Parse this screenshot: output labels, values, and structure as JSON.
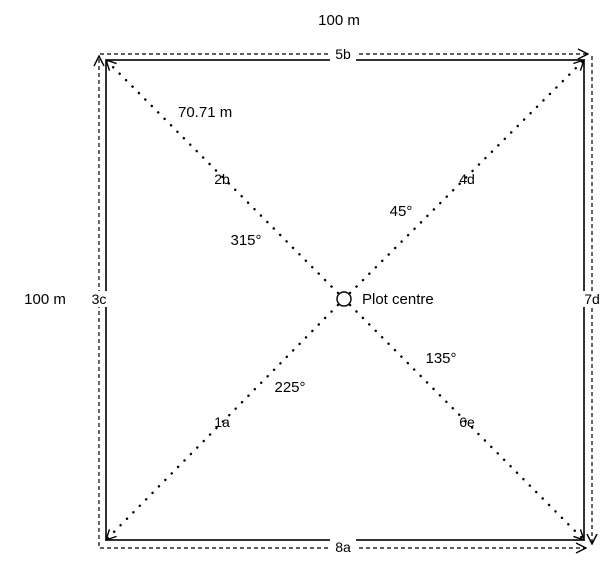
{
  "plot": {
    "top_dimension": "100 m",
    "side_dimension": "100 m",
    "half_diagonal": "70.71 m",
    "centre_label": "Plot centre"
  },
  "bearings": {
    "ne": "45°",
    "se": "135°",
    "sw": "225°",
    "nw": "315°"
  },
  "transects": {
    "sw": "1a",
    "nw": "2b",
    "west": "3c",
    "ne": "4d",
    "north": "5b",
    "se": "6e",
    "east": "7d",
    "south": "8a"
  }
}
